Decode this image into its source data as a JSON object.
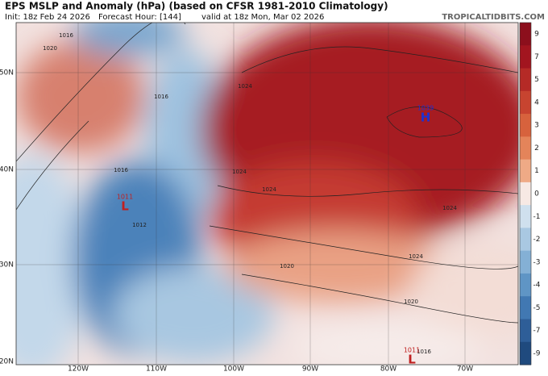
{
  "header": {
    "title": "EPS MSLP and Anomaly (hPa) (based on CFSR 1981-2010 Climatology)",
    "init": "Init: 18z Feb 24 2026",
    "forecast_hour": "Forecast Hour: [144]",
    "valid": "valid at 18z Mon, Mar 02 2026",
    "site": "TROPICALTIDBITS.COM"
  },
  "map": {
    "lat_labels": [
      "50N",
      "40N",
      "30N",
      "20N"
    ],
    "lon_labels": [
      "120W",
      "110W",
      "100W",
      "90W",
      "80W",
      "70W"
    ],
    "pressure_labels": [
      "1016",
      "1020",
      "1016",
      "1024",
      "1024",
      "1024",
      "1016",
      "1012",
      "1020",
      "1024",
      "1024",
      "1020",
      "1016"
    ],
    "centers": [
      {
        "type": "H",
        "pressure": "1039"
      },
      {
        "type": "L",
        "pressure": "1011"
      },
      {
        "type": "L",
        "pressure": "1011"
      }
    ]
  },
  "colorbar": {
    "ticks": [
      9,
      7,
      5,
      4,
      3,
      2,
      1,
      0,
      -1,
      -2,
      -3,
      -4,
      -5,
      -7,
      -9
    ],
    "colors": [
      "#8c0f1c",
      "#a2151f",
      "#b52a26",
      "#c74430",
      "#d7623d",
      "#e4845a",
      "#efaa86",
      "#f7e9e4",
      "#cfe0ee",
      "#a9c8e2",
      "#84b0d5",
      "#5f95c5",
      "#4178b2",
      "#2e5e98",
      "#1f4a7e"
    ]
  }
}
